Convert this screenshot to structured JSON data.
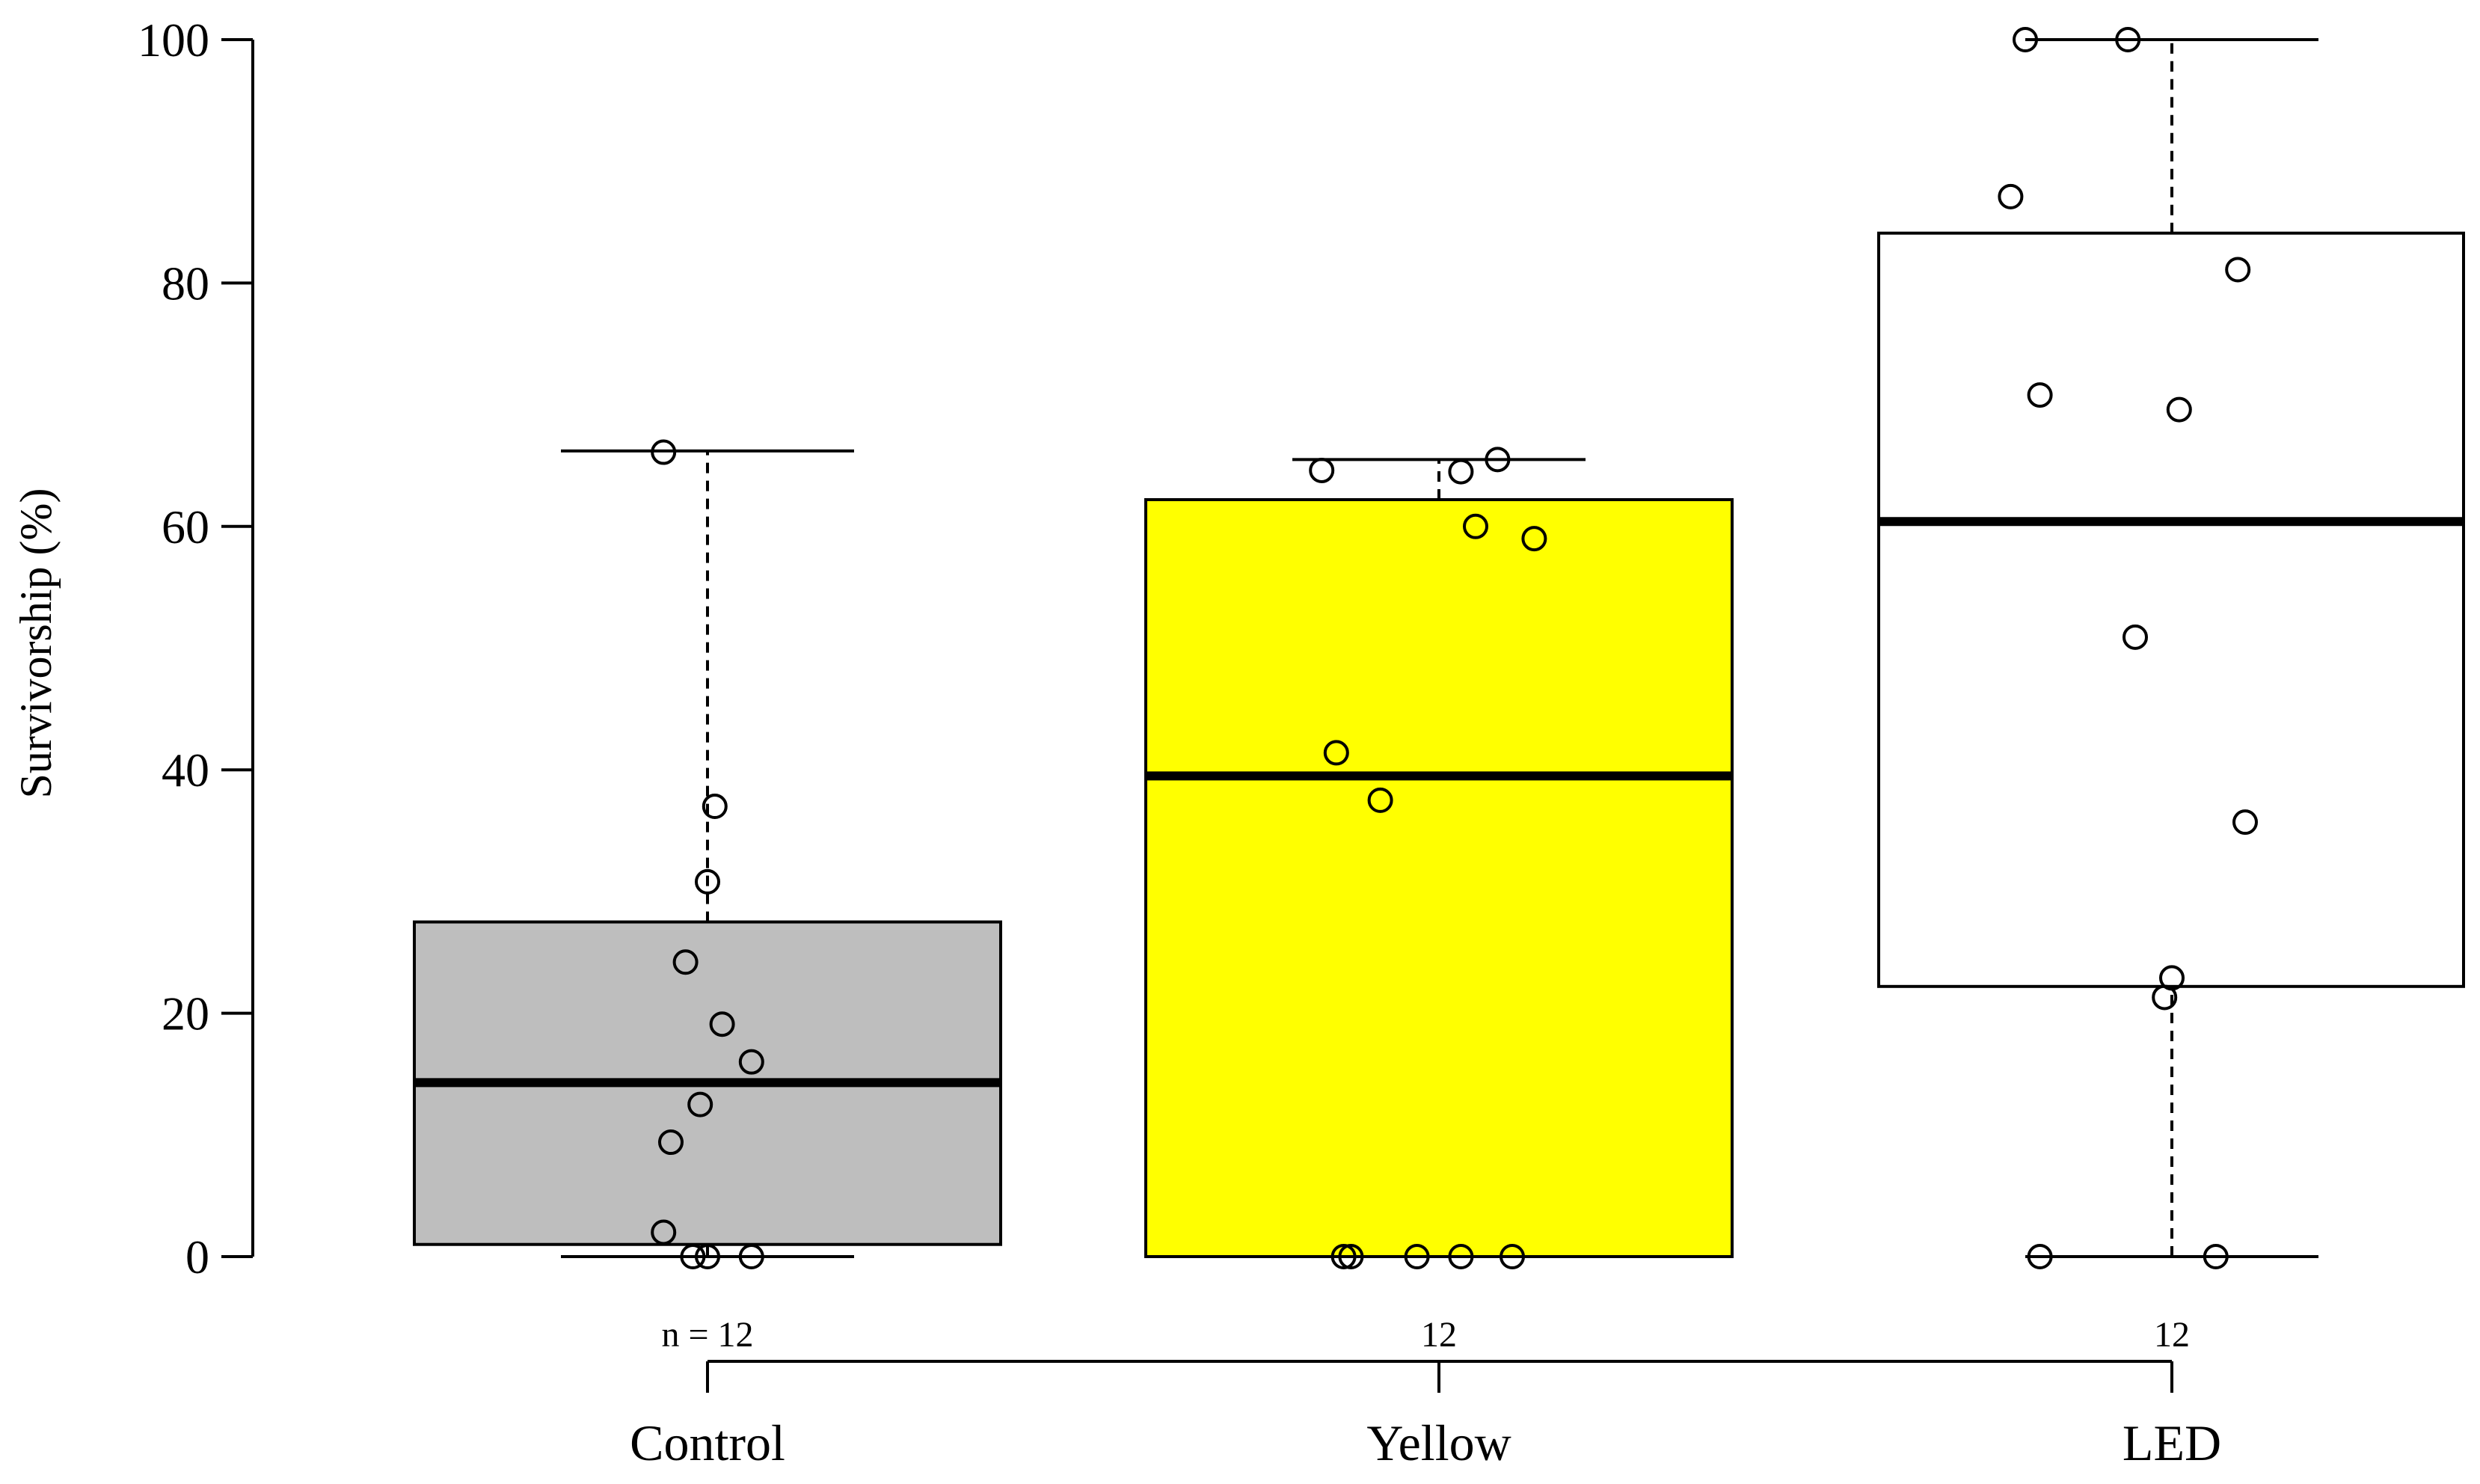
{
  "chart_data": {
    "type": "box",
    "title": "",
    "xlabel": "",
    "ylabel": "Survivorship  (%)",
    "ylim": [
      0,
      100
    ],
    "yticks": [
      0,
      20,
      40,
      60,
      80,
      100
    ],
    "grid": false,
    "legend": "none",
    "categories": [
      "Control",
      "Yellow",
      "LED"
    ],
    "sample_sizes": [
      "n = 12",
      "12",
      "12"
    ],
    "boxes": [
      {
        "name": "Control",
        "color": "#bebebe",
        "whisker_low": 0,
        "q1": 1,
        "median": 14.3,
        "q3": 27.5,
        "whisker_high": 66.2,
        "points": [
          {
            "jitter": -0.06,
            "y": 66.1
          },
          {
            "jitter": 0.01,
            "y": 37.0
          },
          {
            "jitter": 0.0,
            "y": 30.8
          },
          {
            "jitter": -0.03,
            "y": 24.2
          },
          {
            "jitter": 0.02,
            "y": 19.1
          },
          {
            "jitter": 0.06,
            "y": 16.0
          },
          {
            "jitter": -0.01,
            "y": 12.5
          },
          {
            "jitter": -0.05,
            "y": 9.4
          },
          {
            "jitter": -0.06,
            "y": 2.0
          },
          {
            "jitter": -0.02,
            "y": 0
          },
          {
            "jitter": 0.0,
            "y": 0
          },
          {
            "jitter": 0.06,
            "y": 0
          }
        ]
      },
      {
        "name": "Yellow",
        "color": "#ffff00",
        "whisker_low": 0,
        "q1": 0,
        "median": 39.5,
        "q3": 62.2,
        "whisker_high": 65.5,
        "points": [
          {
            "jitter": -0.16,
            "y": 64.6
          },
          {
            "jitter": 0.03,
            "y": 64.5
          },
          {
            "jitter": 0.08,
            "y": 65.5
          },
          {
            "jitter": 0.05,
            "y": 60.0
          },
          {
            "jitter": 0.13,
            "y": 59.0
          },
          {
            "jitter": -0.14,
            "y": 41.4
          },
          {
            "jitter": -0.08,
            "y": 37.5
          },
          {
            "jitter": -0.13,
            "y": 0
          },
          {
            "jitter": -0.12,
            "y": 0
          },
          {
            "jitter": -0.03,
            "y": 0
          },
          {
            "jitter": 0.03,
            "y": 0
          },
          {
            "jitter": 0.1,
            "y": 0
          }
        ]
      },
      {
        "name": "LED",
        "color": "#ffffff",
        "whisker_low": 0,
        "q1": 22.2,
        "median": 60.4,
        "q3": 84.1,
        "whisker_high": 100,
        "points": [
          {
            "jitter": -0.2,
            "y": 100
          },
          {
            "jitter": -0.06,
            "y": 100
          },
          {
            "jitter": -0.22,
            "y": 87.1
          },
          {
            "jitter": 0.09,
            "y": 81.1
          },
          {
            "jitter": -0.18,
            "y": 70.8
          },
          {
            "jitter": 0.01,
            "y": 69.6
          },
          {
            "jitter": -0.05,
            "y": 50.9
          },
          {
            "jitter": 0.1,
            "y": 35.7
          },
          {
            "jitter": 0.0,
            "y": 22.9
          },
          {
            "jitter": -0.01,
            "y": 21.3
          },
          {
            "jitter": -0.18,
            "y": 0
          },
          {
            "jitter": 0.06,
            "y": 0
          }
        ]
      }
    ]
  }
}
